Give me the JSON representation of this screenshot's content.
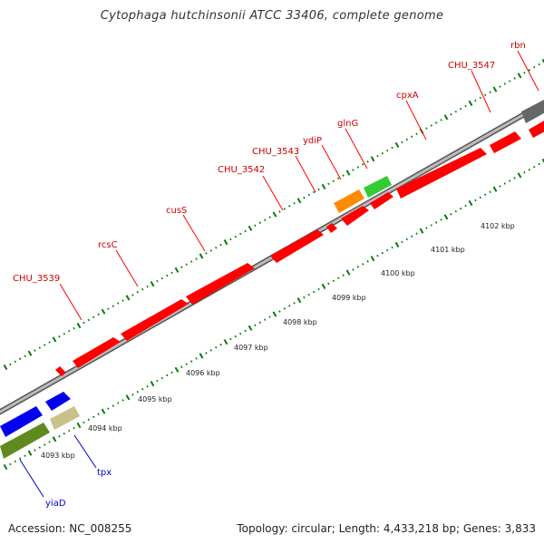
{
  "title": "Cytophaga hutchinsonii ATCC 33406, complete genome",
  "footer": {
    "accession": "Accession: NC_008255",
    "summary": "Topology: circular; Length: 4,433,218 bp; Genes: 3,833"
  },
  "colors": {
    "forward_gene": "#ff0000",
    "reverse_gene_blue": "#0000ee",
    "olive_gene": "#5f8a1f",
    "khaki_gene": "#c8c28a",
    "orange_gene": "#ff8c00",
    "green_gene": "#33cc33",
    "gray_gene": "#666666",
    "tick": "#0a7a0a",
    "label_line_forward": "#ff0000",
    "label_line_reverse": "#0000cc",
    "backbone": "#999999"
  },
  "scale_labels": [
    "4093 kbp",
    "4094 kbp",
    "4095 kbp",
    "4096 kbp",
    "4097 kbp",
    "4098 kbp",
    "4099 kbp",
    "4100 kbp",
    "4101 kbp",
    "4102 kbp"
  ],
  "forward_gene_labels": [
    "CHU_3539",
    "rcsC",
    "cusS",
    "CHU_3542",
    "CHU_3543",
    "ydiP",
    "glnG",
    "cpxA",
    "CHU_3547",
    "rbn"
  ],
  "reverse_gene_labels": [
    "yiaD",
    "tpx"
  ]
}
